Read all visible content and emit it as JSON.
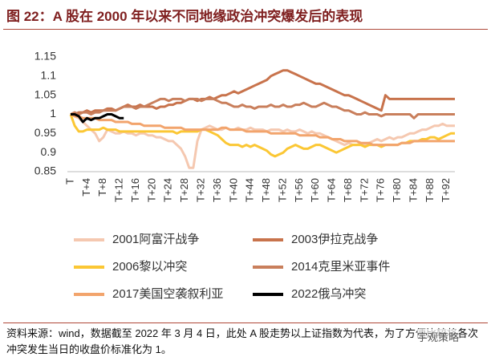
{
  "chart_data": {
    "type": "line",
    "title": "图 22：A 股在 2000 年以来不同地缘政治冲突爆发后的表现",
    "source": "资料来源：wind，数据截至 2022 年 3 月 4 日，此处 A 股走势以上证指数为代表，为了方便比较将各次冲突发生当日的收盘价标准化为 1。",
    "watermark": "宇观策略",
    "categories": [
      "T",
      null,
      null,
      null,
      "T+4",
      null,
      null,
      null,
      "T+8",
      null,
      null,
      null,
      "T+12",
      null,
      null,
      null,
      "T+16",
      null,
      null,
      null,
      "T+20",
      null,
      null,
      null,
      "T+24",
      null,
      null,
      null,
      "T+28",
      null,
      null,
      null,
      "T+32",
      null,
      null,
      null,
      "T+36",
      null,
      null,
      null,
      "T+40",
      null,
      null,
      null,
      "T+44",
      null,
      null,
      null,
      "T+48",
      null,
      null,
      null,
      "T+52",
      null,
      null,
      null,
      "T+56",
      null,
      null,
      null,
      "T+60",
      null,
      null,
      null,
      "T+64",
      null,
      null,
      null,
      "T+68",
      null,
      null,
      null,
      "T+72",
      null,
      null,
      null,
      "T+76",
      null,
      null,
      null,
      "T+80",
      null,
      null,
      null,
      "T+84",
      null,
      null,
      null,
      "T+88",
      null,
      null,
      null,
      "T+92",
      null,
      null
    ],
    "ylim": [
      0.85,
      1.15
    ],
    "yticks": [
      0.85,
      0.9,
      0.95,
      1,
      1.05,
      1.1,
      1.15
    ],
    "series": [
      {
        "name": "2001阿富汗战争",
        "color": "#f5c8b0",
        "values": [
          1,
          0.995,
          0.99,
          0.98,
          0.97,
          0.96,
          0.95,
          0.93,
          0.94,
          0.96,
          0.955,
          0.95,
          0.95,
          0.955,
          0.95,
          0.95,
          0.945,
          0.95,
          0.95,
          0.945,
          0.945,
          0.94,
          0.94,
          0.935,
          0.93,
          0.93,
          0.92,
          0.91,
          0.89,
          0.86,
          0.86,
          0.93,
          0.96,
          0.965,
          0.97,
          0.965,
          0.96,
          0.96,
          0.965,
          0.96,
          0.96,
          0.965,
          0.96,
          0.96,
          0.965,
          0.96,
          0.96,
          0.96,
          0.955,
          0.96,
          0.96,
          0.96,
          0.955,
          0.96,
          0.955,
          0.955,
          0.96,
          0.955,
          0.95,
          0.955,
          0.95,
          0.95,
          0.945,
          0.94,
          0.935,
          0.93,
          0.925,
          0.92,
          0.925,
          0.92,
          0.92,
          0.925,
          0.92,
          0.925,
          0.93,
          0.935,
          0.93,
          0.935,
          0.94,
          0.935,
          0.94,
          0.94,
          0.945,
          0.95,
          0.95,
          0.955,
          0.96,
          0.96,
          0.965,
          0.97,
          0.97,
          0.975,
          0.97,
          0.97,
          0.97
        ]
      },
      {
        "name": "2003伊拉克战争",
        "color": "#c8734c",
        "values": [
          1,
          1,
          1.005,
          1.005,
          1.01,
          1.005,
          1.01,
          1.01,
          1.01,
          1.015,
          1.015,
          1.01,
          1.015,
          1.02,
          1.025,
          1.02,
          1.02,
          1.025,
          1.02,
          1.02,
          1.02,
          1.015,
          1.02,
          1.02,
          1.025,
          1.025,
          1.03,
          1.03,
          1.035,
          1.04,
          1.04,
          1.035,
          1.04,
          1.04,
          1.045,
          1.04,
          1.045,
          1.05,
          1.05,
          1.055,
          1.06,
          1.055,
          1.06,
          1.065,
          1.07,
          1.075,
          1.08,
          1.085,
          1.09,
          1.1,
          1.105,
          1.11,
          1.115,
          1.115,
          1.11,
          1.105,
          1.1,
          1.095,
          1.09,
          1.085,
          1.08,
          1.08,
          1.075,
          1.07,
          1.065,
          1.06,
          1.055,
          1.05,
          1.05,
          1.045,
          1.04,
          1.035,
          1.03,
          1.025,
          1.02,
          1.015,
          1.01,
          1.05,
          1.04,
          1.04,
          1.04,
          1.04,
          1.04,
          1.04,
          1.04,
          1.04,
          1.04,
          1.04,
          1.04,
          1.04,
          1.04,
          1.04,
          1.04,
          1.04,
          1.04
        ]
      },
      {
        "name": "2006黎以冲突",
        "color": "#fbc734",
        "values": [
          1,
          0.97,
          0.955,
          0.955,
          0.96,
          0.96,
          0.96,
          0.96,
          0.965,
          0.96,
          0.96,
          0.96,
          0.955,
          0.955,
          0.955,
          0.955,
          0.955,
          0.955,
          0.955,
          0.955,
          0.955,
          0.955,
          0.955,
          0.955,
          0.955,
          0.955,
          0.95,
          0.955,
          0.955,
          0.955,
          0.955,
          0.955,
          0.96,
          0.96,
          0.955,
          0.95,
          0.945,
          0.935,
          0.925,
          0.92,
          0.92,
          0.92,
          0.915,
          0.92,
          0.915,
          0.92,
          0.915,
          0.91,
          0.905,
          0.895,
          0.89,
          0.895,
          0.9,
          0.91,
          0.915,
          0.92,
          0.915,
          0.91,
          0.91,
          0.915,
          0.92,
          0.92,
          0.915,
          0.91,
          0.905,
          0.9,
          0.905,
          0.91,
          0.915,
          0.92,
          0.92,
          0.92,
          0.915,
          0.92,
          0.92,
          0.92,
          0.915,
          0.92,
          0.92,
          0.92,
          0.92,
          0.925,
          0.925,
          0.93,
          0.93,
          0.93,
          0.935,
          0.935,
          0.94,
          0.94,
          0.935,
          0.94,
          0.945,
          0.95,
          0.95
        ]
      },
      {
        "name": "2014克里米亚事件",
        "color": "#c97f5c",
        "values": [
          1,
          1.005,
          1,
          1.005,
          1.005,
          1,
          1.005,
          1.005,
          1.01,
          1.01,
          1.01,
          1.01,
          1.015,
          1.02,
          1.02,
          1.02,
          1.015,
          1.02,
          1.02,
          1.025,
          1.03,
          1.035,
          1.04,
          1.04,
          1.035,
          1.04,
          1.04,
          1.04,
          1.035,
          1.04,
          1.04,
          1.04,
          1.035,
          1.04,
          1.04,
          1.04,
          1.035,
          1.03,
          1.03,
          1.025,
          1.02,
          1.02,
          1.025,
          1.02,
          1.02,
          1.015,
          1.02,
          1.02,
          1.02,
          1.025,
          1.02,
          1.02,
          1.025,
          1.02,
          1.02,
          1.025,
          1.025,
          1.03,
          1.025,
          1.02,
          1.02,
          1.025,
          1.03,
          1.025,
          1.02,
          1.02,
          1.015,
          1.01,
          1.01,
          1.005,
          1,
          1,
          1.005,
          1,
          1,
          1,
          0.995,
          1,
          1,
          1,
          1,
          1,
          1,
          1,
          0.99,
          1,
          1,
          1,
          1,
          1,
          1,
          1,
          1,
          1,
          1
        ]
      },
      {
        "name": "2017美国空袭叙利亚",
        "color": "#f2a46c",
        "values": [
          1,
          0.995,
          0.995,
          0.99,
          0.99,
          0.99,
          0.99,
          0.985,
          0.985,
          0.985,
          0.985,
          0.98,
          0.98,
          0.98,
          0.98,
          0.975,
          0.975,
          0.975,
          0.97,
          0.97,
          0.97,
          0.97,
          0.97,
          0.965,
          0.965,
          0.965,
          0.965,
          0.965,
          0.96,
          0.96,
          0.96,
          0.96,
          0.96,
          0.96,
          0.96,
          0.96,
          0.96,
          0.965,
          0.965,
          0.96,
          0.96,
          0.96,
          0.96,
          0.955,
          0.955,
          0.955,
          0.955,
          0.955,
          0.955,
          0.95,
          0.95,
          0.95,
          0.95,
          0.95,
          0.95,
          0.95,
          0.945,
          0.945,
          0.945,
          0.945,
          0.945,
          0.94,
          0.94,
          0.94,
          0.935,
          0.935,
          0.935,
          0.93,
          0.93,
          0.93,
          0.93,
          0.925,
          0.925,
          0.925,
          0.92,
          0.92,
          0.92,
          0.92,
          0.92,
          0.92,
          0.92,
          0.925,
          0.925,
          0.925,
          0.93,
          0.93,
          0.93,
          0.93,
          0.93,
          0.93,
          0.93,
          0.93,
          0.93,
          0.93,
          0.93
        ]
      },
      {
        "name": "2022俄乌冲突",
        "color": "#000000",
        "values": [
          1,
          1,
          0.995,
          0.98,
          0.99,
          0.985,
          0.99,
          0.99,
          0.995,
          1,
          1,
          0.995,
          0.99,
          0.99,
          null,
          null,
          null,
          null,
          null,
          null,
          null,
          null,
          null,
          null,
          null,
          null,
          null,
          null,
          null,
          null,
          null,
          null,
          null,
          null,
          null,
          null,
          null,
          null,
          null,
          null,
          null,
          null,
          null,
          null,
          null,
          null,
          null,
          null,
          null,
          null,
          null,
          null,
          null,
          null,
          null,
          null,
          null,
          null,
          null,
          null,
          null,
          null,
          null,
          null,
          null,
          null,
          null,
          null,
          null,
          null,
          null,
          null,
          null,
          null,
          null,
          null,
          null,
          null,
          null,
          null,
          null,
          null,
          null,
          null,
          null,
          null,
          null,
          null,
          null,
          null,
          null,
          null,
          null,
          null,
          null
        ]
      }
    ]
  }
}
